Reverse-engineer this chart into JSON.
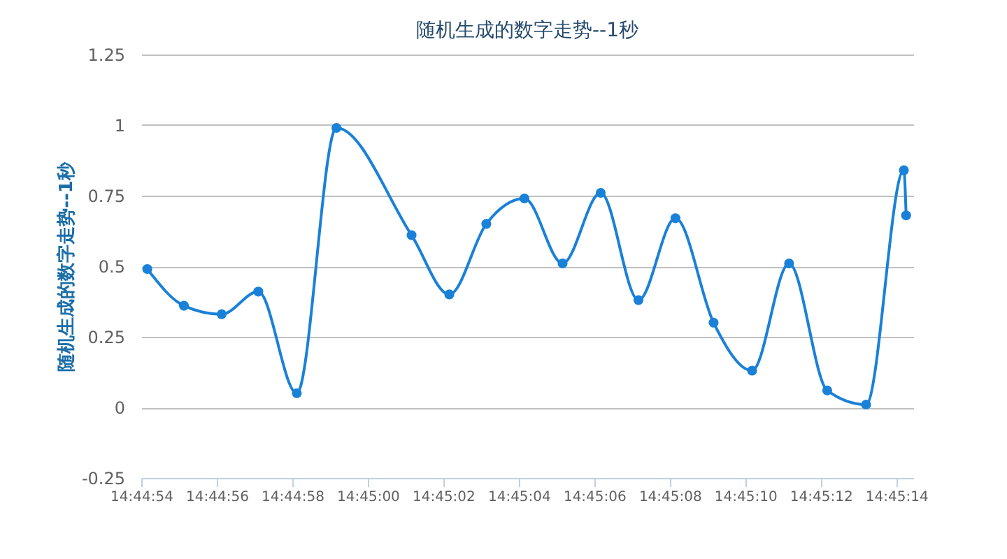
{
  "chart_data": {
    "type": "line",
    "title": "随机生成的数字走势--1秒",
    "ylabel": "随机生成的数字走势--1秒",
    "x": [
      14.7483778,
      14.7486472,
      14.748925,
      14.7491944,
      14.7494778,
      14.7497694,
      14.7503222,
      14.7506,
      14.7508722,
      14.7511528,
      14.7514333,
      14.7517139,
      14.7519917,
      14.7522639,
      14.7525444,
      14.7528278,
      14.7531,
      14.7533806,
      14.7536667,
      14.7539444,
      14.7539611
    ],
    "series": [
      {
        "color": "#1a81d8",
        "values": [
          0.49,
          0.36,
          0.33,
          0.41,
          0.05,
          0.99,
          0.61,
          0.4,
          0.65,
          0.74,
          0.51,
          0.76,
          0.38,
          0.67,
          0.3,
          0.13,
          0.51,
          0.06,
          0.01,
          0.84,
          0.68
        ]
      }
    ],
    "xlim": [
      14.7483333,
      14.7540139
    ],
    "xticks": [
      {
        "value": 14.7483333,
        "label": "14:44:54"
      },
      {
        "value": 14.7488889,
        "label": "14:44:56"
      },
      {
        "value": 14.7494444,
        "label": "14:44:58"
      },
      {
        "value": 14.75,
        "label": "14:45:00"
      },
      {
        "value": 14.7505556,
        "label": "14:45:02"
      },
      {
        "value": 14.7511111,
        "label": "14:45:04"
      },
      {
        "value": 14.7516667,
        "label": "14:45:06"
      },
      {
        "value": 14.7522222,
        "label": "14:45:08"
      },
      {
        "value": 14.7527778,
        "label": "14:45:10"
      },
      {
        "value": 14.7533333,
        "label": "14:45:12"
      },
      {
        "value": 14.7538889,
        "label": "14:45:14"
      }
    ],
    "ylim": [
      -0.25,
      1.25
    ],
    "yticks": [
      -0.25,
      0,
      0.25,
      0.5,
      0.75,
      1,
      1.25
    ],
    "grid": "y",
    "marker": "circle",
    "line_style": "solid"
  }
}
